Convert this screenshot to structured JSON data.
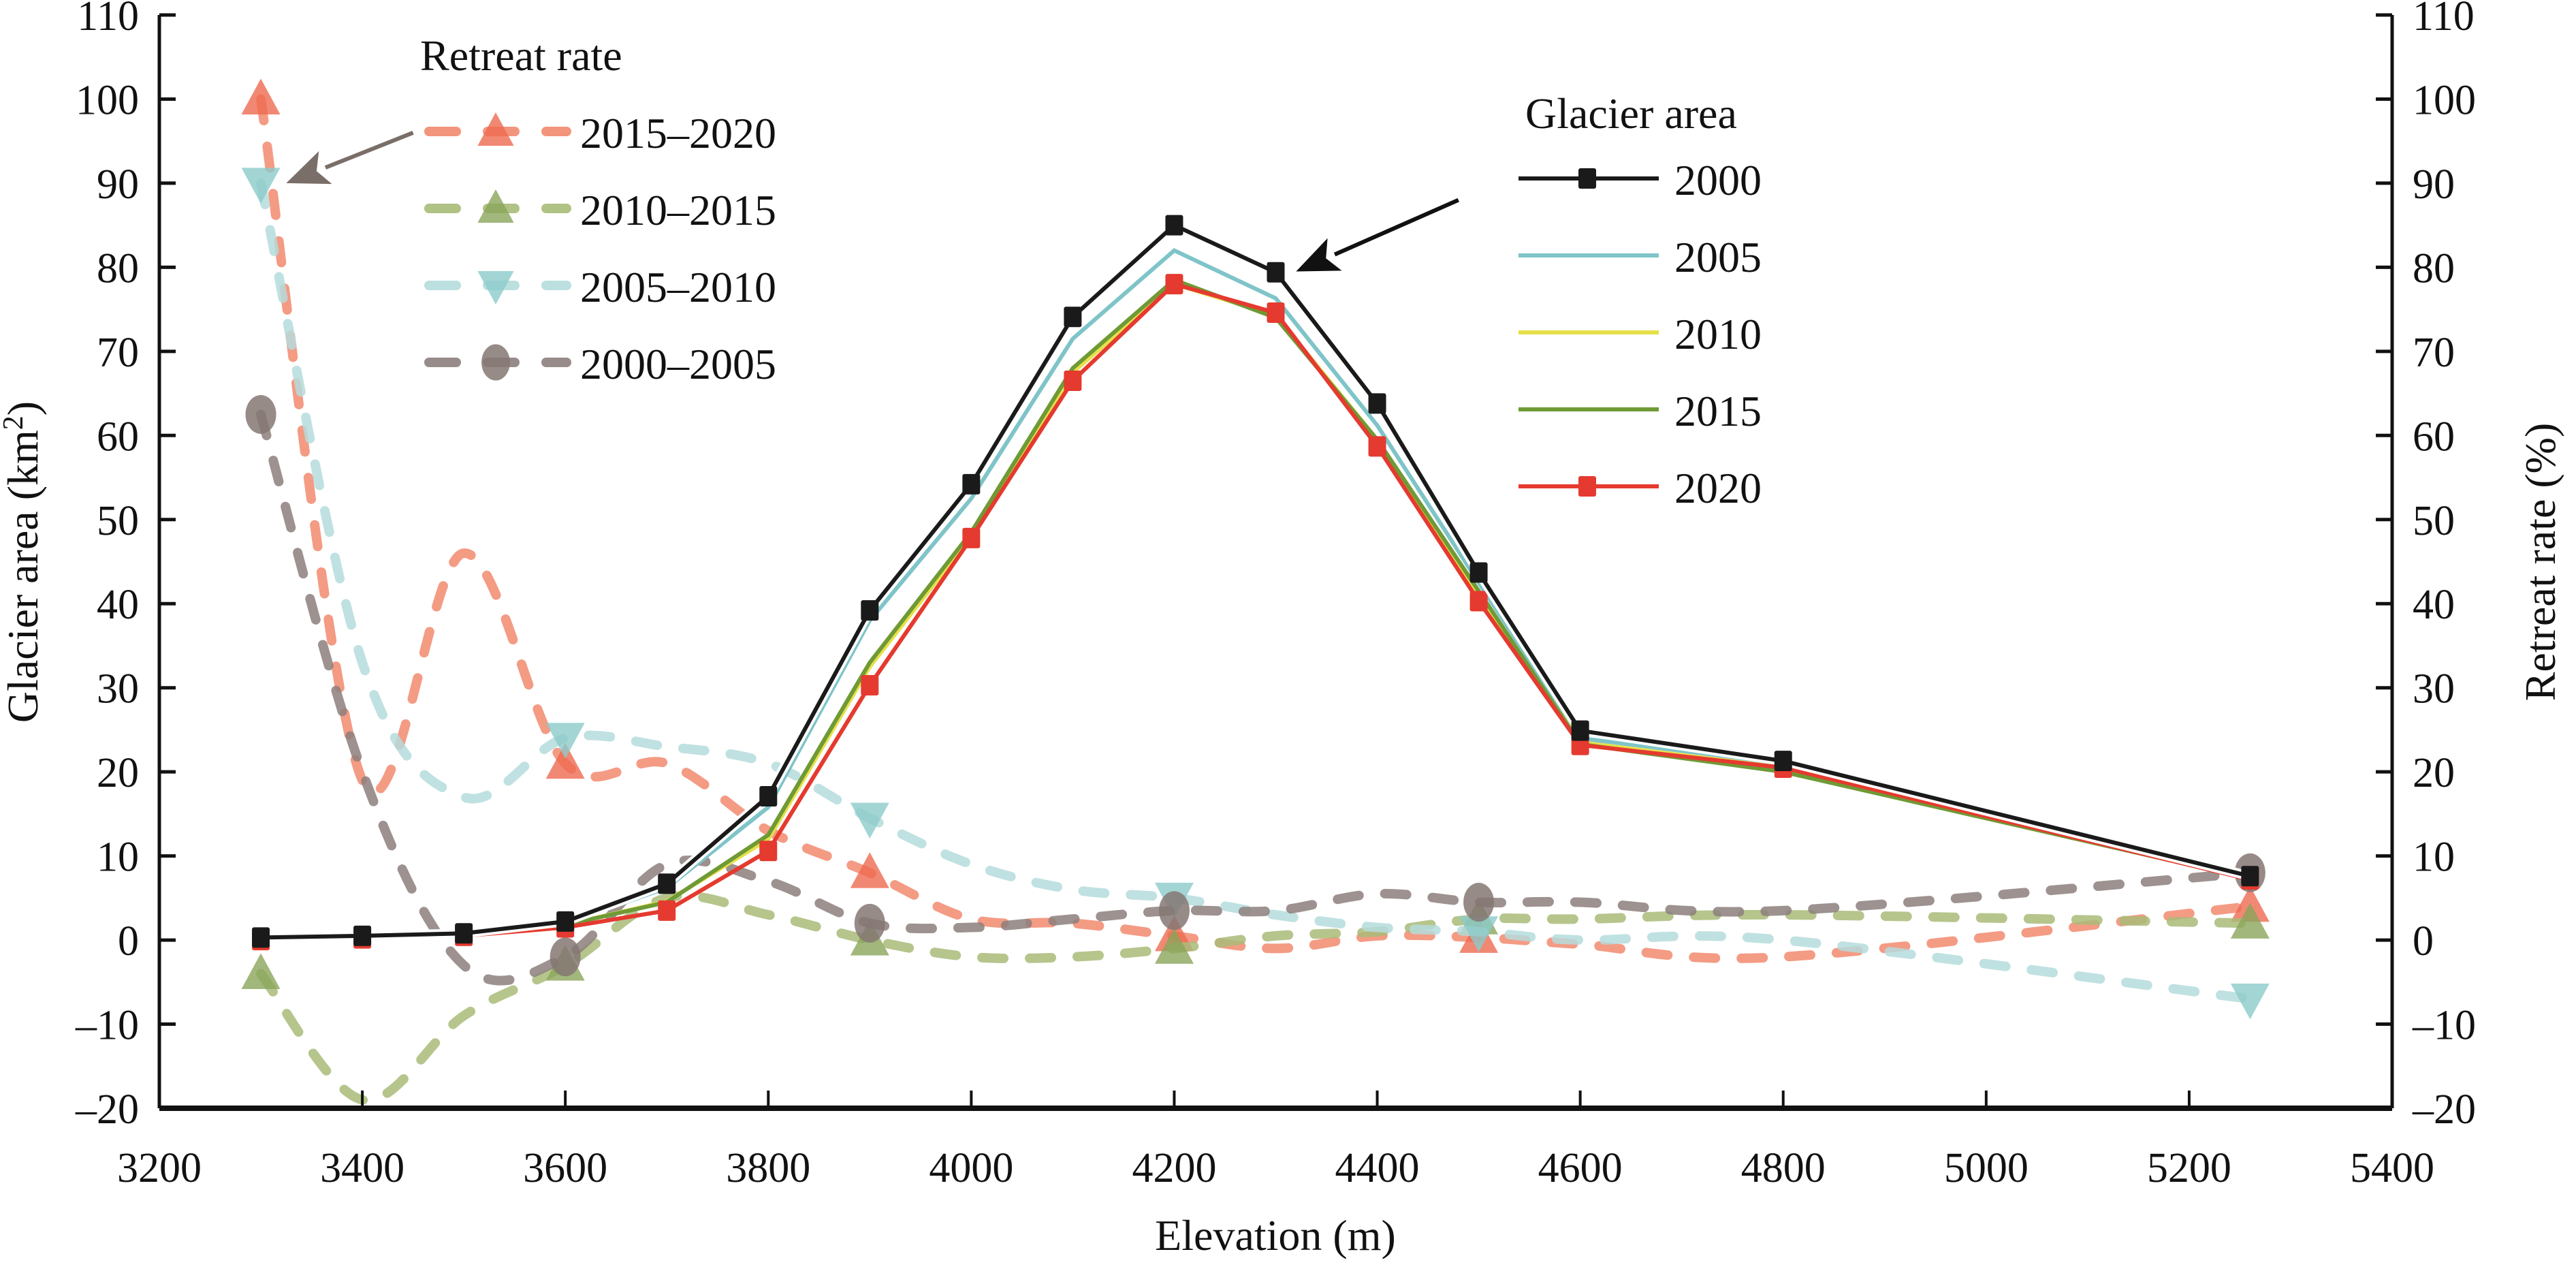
{
  "chart_data": {
    "type": "line",
    "title": "",
    "xlabel": "Elevation (m)",
    "ylabel_left": "Glacier area (km²)",
    "ylabel_left_base": "Glacier area (km",
    "ylabel_left_sup": "2",
    "ylabel_left_close": ")",
    "ylabel_right": "Retreat rate (%)",
    "xlim": [
      3200,
      5400
    ],
    "ylim": [
      -20,
      110
    ],
    "y_right_lim": [
      -20,
      110
    ],
    "grid": false,
    "x_ticks": [
      3200,
      3400,
      3600,
      3800,
      4000,
      4200,
      4400,
      4600,
      4800,
      5000,
      5200,
      5400
    ],
    "y_ticks": [
      -20,
      -10,
      0,
      10,
      20,
      30,
      40,
      50,
      60,
      70,
      80,
      90,
      100,
      110
    ],
    "y_tick_labels": [
      "–20",
      "–10",
      "0",
      "10",
      "20",
      "30",
      "40",
      "50",
      "60",
      "70",
      "80",
      "90",
      "100",
      "110"
    ],
    "x": [
      3300,
      3400,
      3500,
      3600,
      3700,
      3800,
      3900,
      4000,
      4100,
      4200,
      4300,
      4400,
      4500,
      4600,
      4800,
      5260
    ],
    "area_legend": {
      "title": "Glacier area",
      "placement": "top-center-right"
    },
    "rate_legend": {
      "title": "Retreat rate",
      "placement": "top-left"
    },
    "area_series": [
      {
        "name": "2000",
        "color": "#1a1a1a",
        "marker": "square",
        "values": [
          0.3,
          0.5,
          0.8,
          2.2,
          6.7,
          17.1,
          39.2,
          54.2,
          74.1,
          85.0,
          79.4,
          63.8,
          43.7,
          24.9,
          21.3,
          7.6
        ]
      },
      {
        "name": "2005",
        "color": "#7ec4c8",
        "marker": "none",
        "values": [
          0.2,
          0.4,
          0.7,
          2.0,
          6.2,
          15.8,
          38.0,
          52.5,
          71.5,
          82.0,
          76.3,
          61.2,
          42.5,
          24.0,
          21.0,
          7.4
        ]
      },
      {
        "name": "2010",
        "color": "#e6e04a",
        "marker": "none",
        "values": [
          0.1,
          0.3,
          0.6,
          1.8,
          4.6,
          12.0,
          32.5,
          48.0,
          67.5,
          78.0,
          74.3,
          59.5,
          41.0,
          23.5,
          20.5,
          7.3
        ]
      },
      {
        "name": "2015",
        "color": "#6f9a35",
        "marker": "none",
        "values": [
          0.1,
          0.3,
          0.6,
          1.8,
          4.5,
          12.5,
          33.0,
          48.5,
          68.0,
          78.5,
          74.0,
          59.5,
          41.5,
          23.3,
          20.0,
          7.3
        ]
      },
      {
        "name": "2020",
        "color": "#e53a2f",
        "marker": "square",
        "values": [
          0.0,
          0.2,
          0.5,
          1.5,
          3.5,
          10.6,
          30.3,
          47.8,
          66.5,
          78.0,
          74.6,
          58.7,
          40.3,
          23.2,
          20.5,
          7.2
        ]
      }
    ],
    "rate_series": [
      {
        "name": "2015–2020",
        "color": "#f28a6e",
        "marker_color": "#ee6a50",
        "marker": "triangle-up",
        "values": [
          100,
          19,
          46,
          21,
          21,
          13,
          8,
          2.5,
          2,
          0.5,
          -1,
          0.5,
          0.3,
          -0.5,
          -2,
          4
        ]
      },
      {
        "name": "2010–2015",
        "color": "#a9bb78",
        "marker_color": "#8aa55a",
        "marker": "triangle-up",
        "values": [
          -4,
          -19,
          -9,
          -3,
          5,
          3,
          0,
          -2,
          -2,
          -1,
          0.5,
          1,
          2.5,
          2.5,
          3,
          2
        ]
      },
      {
        "name": "2005–2010",
        "color": "#b5dcdc",
        "marker_color": "#8ccbcb",
        "marker": "triangle-down",
        "values": [
          90,
          33,
          17,
          24,
          23,
          21,
          14.5,
          9,
          6,
          5,
          3,
          1.5,
          1,
          0,
          0,
          -7
        ]
      },
      {
        "name": "2000–2005",
        "color": "#8c7f7c",
        "marker_color": "#857773",
        "marker": "circle",
        "values": [
          62.5,
          20,
          -3,
          -2,
          9,
          7,
          2,
          1.5,
          2.5,
          3.5,
          3.5,
          5.5,
          4.5,
          4.5,
          3.5,
          8
        ]
      }
    ],
    "rate_marker_x": [
      3300,
      3600,
      3900,
      4200,
      4500,
      5260
    ],
    "annotations": [
      {
        "type": "arrow",
        "color": "#7a6e68",
        "from": [
          3450,
          96
        ],
        "to": [
          3325,
          90
        ],
        "note": "points to 2005–2010 at 3300 m"
      },
      {
        "type": "arrow",
        "color": "#111111",
        "from": [
          4480,
          88
        ],
        "to": [
          4320,
          79.5
        ],
        "note": "points to 2000 at 4300 m"
      }
    ]
  }
}
